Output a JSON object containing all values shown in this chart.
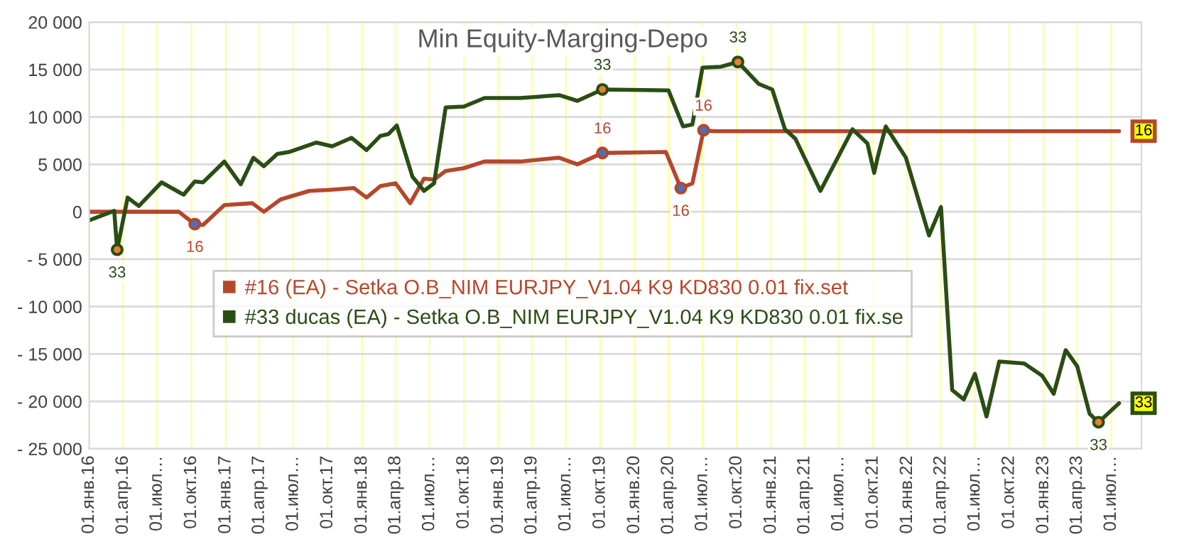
{
  "chart_data": {
    "type": "line",
    "title": "Min Equity-Marging-Depo",
    "series": [
      {
        "name": "#16 (EA) - Setka O.B_NIM EURJPY_V1.04 K9 KD830 0.01 fix.set",
        "color": "#b5472c",
        "x": [
          "2016-01-01",
          "2016-08-28",
          "2016-10-10",
          "2016-11-01",
          "2016-12-28",
          "2017-03-13",
          "2017-04-13",
          "2017-05-28",
          "2017-08-13",
          "2017-10-01",
          "2017-12-10",
          "2018-01-13",
          "2018-02-19",
          "2018-04-01",
          "2018-05-10",
          "2018-06-16",
          "2018-07-13",
          "2018-08-13",
          "2018-10-01",
          "2018-11-25",
          "2019-03-01",
          "2019-06-13",
          "2019-08-01",
          "2019-10-07",
          "2020-03-25",
          "2020-05-04",
          "2020-06-04",
          "2020-07-04",
          "2020-08-01",
          "2023-07-22"
        ],
        "values": [
          0,
          0,
          -1300,
          -1400,
          700,
          900,
          0,
          1300,
          2200,
          2300,
          2500,
          1500,
          2700,
          3000,
          900,
          3500,
          3400,
          4300,
          4600,
          5300,
          5300,
          5700,
          5000,
          6200,
          6300,
          2500,
          3000,
          8600,
          8500,
          8500
        ]
      },
      {
        "name": "#33 ducas (EA) - Setka O.B_NIM EURJPY_V1.04 K9 KD830 0.01 fix.se",
        "color": "#2a4d14",
        "x": [
          "2016-01-01",
          "2016-03-08",
          "2016-03-16",
          "2016-04-13",
          "2016-05-13",
          "2016-07-13",
          "2016-09-10",
          "2016-10-10",
          "2016-11-01",
          "2016-12-28",
          "2017-02-10",
          "2017-03-16",
          "2017-04-13",
          "2017-05-19",
          "2017-06-19",
          "2017-09-01",
          "2017-10-13",
          "2017-12-04",
          "2018-01-13",
          "2018-02-19",
          "2018-03-13",
          "2018-04-04",
          "2018-05-16",
          "2018-06-16",
          "2018-07-13",
          "2018-08-13",
          "2018-10-01",
          "2018-11-25",
          "2019-03-01",
          "2019-06-13",
          "2019-08-01",
          "2019-10-07",
          "2020-04-01",
          "2020-05-10",
          "2020-06-04",
          "2020-07-01",
          "2020-08-19",
          "2020-10-04",
          "2020-11-28",
          "2021-01-04",
          "2021-02-07",
          "2021-03-07",
          "2021-05-13",
          "2021-08-07",
          "2021-09-16",
          "2021-10-04",
          "2021-10-13",
          "2021-11-04",
          "2021-12-28",
          "2022-02-28",
          "2022-04-01",
          "2022-05-01",
          "2022-06-01",
          "2022-07-01",
          "2022-08-01",
          "2022-09-04",
          "2022-11-10",
          "2022-12-28",
          "2023-01-28",
          "2023-03-01",
          "2023-04-01",
          "2023-05-04",
          "2023-05-28",
          "2023-07-22"
        ],
        "values": [
          -900,
          100,
          -4000,
          1500,
          600,
          3100,
          1800,
          3200,
          3100,
          5300,
          2900,
          5700,
          4800,
          6100,
          6300,
          7300,
          6900,
          7800,
          6500,
          8000,
          8200,
          9100,
          3700,
          2200,
          3000,
          11000,
          11100,
          12000,
          12000,
          12300,
          11700,
          12900,
          12800,
          9000,
          9200,
          15200,
          15300,
          15800,
          13500,
          12900,
          8700,
          7700,
          2200,
          8700,
          7200,
          4100,
          5700,
          9000,
          5700,
          -2500,
          500,
          -18800,
          -19800,
          -17100,
          -21600,
          -15800,
          -16000,
          -17300,
          -19200,
          -14600,
          -16300,
          -21300,
          -22200,
          -20200
        ]
      }
    ],
    "xlim": [
      "2016-01-01",
      "2023-09-20"
    ],
    "xticks": [
      {
        "value": "2016-01-01",
        "label": "01.янв.16"
      },
      {
        "value": "2016-04-01",
        "label": "01.апр.16"
      },
      {
        "value": "2016-07-01",
        "label": "01.июл…"
      },
      {
        "value": "2016-10-01",
        "label": "01.окт.16"
      },
      {
        "value": "2017-01-01",
        "label": "01.янв.17"
      },
      {
        "value": "2017-04-01",
        "label": "01.апр.17"
      },
      {
        "value": "2017-07-01",
        "label": "01.июл…"
      },
      {
        "value": "2017-10-01",
        "label": "01.окт.17"
      },
      {
        "value": "2018-01-01",
        "label": "01.янв.18"
      },
      {
        "value": "2018-04-01",
        "label": "01.апр.18"
      },
      {
        "value": "2018-07-01",
        "label": "01.июл…"
      },
      {
        "value": "2018-10-01",
        "label": "01.окт.18"
      },
      {
        "value": "2019-01-01",
        "label": "01.янв.19"
      },
      {
        "value": "2019-04-01",
        "label": "01.апр.19"
      },
      {
        "value": "2019-07-01",
        "label": "01.июл…"
      },
      {
        "value": "2019-10-01",
        "label": "01.окт.19"
      },
      {
        "value": "2020-01-01",
        "label": "01.янв.20"
      },
      {
        "value": "2020-04-01",
        "label": "01.апр.20"
      },
      {
        "value": "2020-07-01",
        "label": "01.июл…"
      },
      {
        "value": "2020-10-01",
        "label": "01.окт.20"
      },
      {
        "value": "2021-01-01",
        "label": "01.янв.21"
      },
      {
        "value": "2021-04-01",
        "label": "01.апр.21"
      },
      {
        "value": "2021-07-01",
        "label": "01.июл…"
      },
      {
        "value": "2021-10-01",
        "label": "01.окт.21"
      },
      {
        "value": "2022-01-01",
        "label": "01.янв.22"
      },
      {
        "value": "2022-04-01",
        "label": "01.апр.22"
      },
      {
        "value": "2022-07-01",
        "label": "01.июл…"
      },
      {
        "value": "2022-10-01",
        "label": "01.окт.22"
      },
      {
        "value": "2023-01-01",
        "label": "01.янв.23"
      },
      {
        "value": "2023-04-01",
        "label": "01.апр.23"
      },
      {
        "value": "2023-07-01",
        "label": "01.июл…"
      }
    ],
    "ylim": [
      -25000,
      20000
    ],
    "yticks": [
      {
        "value": -25000,
        "label": "- 25 000"
      },
      {
        "value": -20000,
        "label": "- 20 000"
      },
      {
        "value": -15000,
        "label": "- 15 000"
      },
      {
        "value": -10000,
        "label": "- 10 000"
      },
      {
        "value": -5000,
        "label": "- 5 000"
      },
      0,
      {
        "value": 5000,
        "label": "5 000"
      },
      {
        "value": 10000,
        "label": "10 000"
      },
      {
        "value": 15000,
        "label": "15 000"
      },
      {
        "value": 20000,
        "label": "20 000"
      }
    ],
    "annotations": [
      {
        "text": "33",
        "x": "2016-03-16",
        "y": -4000
      },
      {
        "text": "16",
        "x": "2016-10-10",
        "y": -1300
      },
      {
        "text": "33",
        "x": "2019-10-07",
        "y": 12900
      },
      {
        "text": "16",
        "x": "2019-10-07",
        "y": 6200
      },
      {
        "text": "16",
        "x": "2020-05-04",
        "y": 2500
      },
      {
        "text": "16",
        "x": "2020-07-04",
        "y": 8600
      },
      {
        "text": "33",
        "x": "2020-10-04",
        "y": 15800
      },
      {
        "text": "33",
        "x": "2023-05-28",
        "y": -22200
      },
      {
        "text": "16",
        "x": "2023-07-22",
        "y": 8500
      },
      {
        "text": "33",
        "x": "2023-07-22",
        "y": -20200
      }
    ],
    "grid": true,
    "legend": "center",
    "line_style": "solid"
  }
}
